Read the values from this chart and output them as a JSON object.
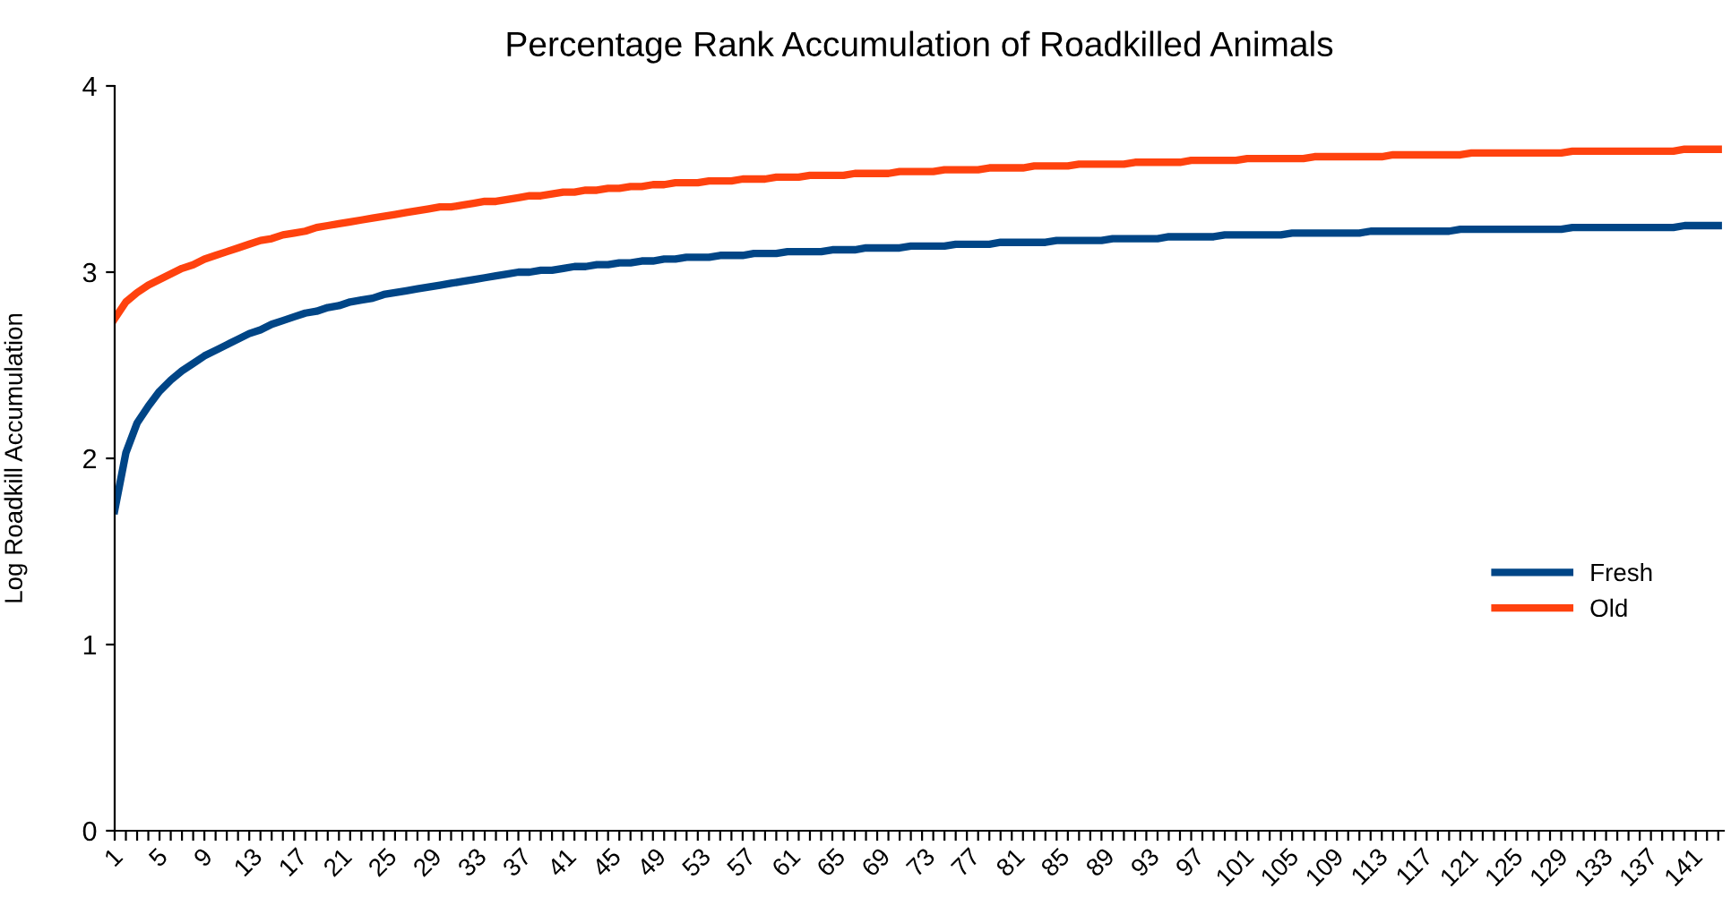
{
  "chart_data": {
    "type": "line",
    "title": "Percentage Rank Accumulation of Roadkilled Animals",
    "ylabel": "Log Roadkill Accumulation",
    "categories": [
      "1",
      null,
      null,
      null,
      "5",
      null,
      null,
      null,
      "9",
      null,
      null,
      null,
      "13",
      null,
      null,
      null,
      "17",
      null,
      null,
      null,
      "21",
      null,
      null,
      null,
      "25",
      null,
      null,
      null,
      "29",
      null,
      null,
      null,
      "33",
      null,
      null,
      null,
      "37",
      null,
      null,
      null,
      "41",
      null,
      null,
      null,
      "45",
      null,
      null,
      null,
      "49",
      null,
      null,
      null,
      "53",
      null,
      null,
      null,
      "57",
      null,
      null,
      null,
      "61",
      null,
      null,
      null,
      "65",
      null,
      null,
      null,
      "69",
      null,
      null,
      null,
      "73",
      null,
      null,
      null,
      "77",
      null,
      null,
      null,
      "81",
      null,
      null,
      null,
      "85",
      null,
      null,
      null,
      "89",
      null,
      null,
      null,
      "93",
      null,
      null,
      null,
      "97",
      null,
      null,
      null,
      "101",
      null,
      null,
      null,
      "105",
      null,
      null,
      null,
      "109",
      null,
      null,
      null,
      "113",
      null,
      null,
      null,
      "117",
      null,
      null,
      null,
      "121",
      null,
      null,
      null,
      "125",
      null,
      null,
      null,
      "129",
      null,
      null,
      null,
      "133",
      null,
      null,
      null,
      "137",
      null,
      null,
      null,
      "141",
      null,
      null,
      null
    ],
    "series": [
      {
        "name": "Fresh",
        "color": "#004586",
        "values": [
          1.72,
          2.03,
          2.19,
          2.28,
          2.36,
          2.42,
          2.47,
          2.51,
          2.55,
          2.58,
          2.61,
          2.64,
          2.67,
          2.69,
          2.72,
          2.74,
          2.76,
          2.78,
          2.79,
          2.81,
          2.82,
          2.84,
          2.85,
          2.86,
          2.88,
          2.89,
          2.9,
          2.91,
          2.92,
          2.93,
          2.94,
          2.95,
          2.96,
          2.97,
          2.98,
          2.99,
          3.0,
          3.0,
          3.01,
          3.01,
          3.02,
          3.03,
          3.03,
          3.04,
          3.04,
          3.05,
          3.05,
          3.06,
          3.06,
          3.07,
          3.07,
          3.08,
          3.08,
          3.08,
          3.09,
          3.09,
          3.09,
          3.1,
          3.1,
          3.1,
          3.11,
          3.11,
          3.11,
          3.11,
          3.12,
          3.12,
          3.12,
          3.13,
          3.13,
          3.13,
          3.13,
          3.14,
          3.14,
          3.14,
          3.14,
          3.15,
          3.15,
          3.15,
          3.15,
          3.16,
          3.16,
          3.16,
          3.16,
          3.16,
          3.17,
          3.17,
          3.17,
          3.17,
          3.17,
          3.18,
          3.18,
          3.18,
          3.18,
          3.18,
          3.19,
          3.19,
          3.19,
          3.19,
          3.19,
          3.2,
          3.2,
          3.2,
          3.2,
          3.2,
          3.2,
          3.21,
          3.21,
          3.21,
          3.21,
          3.21,
          3.21,
          3.21,
          3.22,
          3.22,
          3.22,
          3.22,
          3.22,
          3.22,
          3.22,
          3.22,
          3.23,
          3.23,
          3.23,
          3.23,
          3.23,
          3.23,
          3.23,
          3.23,
          3.23,
          3.23,
          3.24,
          3.24,
          3.24,
          3.24,
          3.24,
          3.24,
          3.24,
          3.24,
          3.24,
          3.24,
          3.25,
          3.25,
          3.25,
          3.25
        ]
      },
      {
        "name": "Old",
        "color": "#ff420e",
        "values": [
          2.75,
          2.84,
          2.89,
          2.93,
          2.96,
          2.99,
          3.02,
          3.04,
          3.07,
          3.09,
          3.11,
          3.13,
          3.15,
          3.17,
          3.18,
          3.2,
          3.21,
          3.22,
          3.24,
          3.25,
          3.26,
          3.27,
          3.28,
          3.29,
          3.3,
          3.31,
          3.32,
          3.33,
          3.34,
          3.35,
          3.35,
          3.36,
          3.37,
          3.38,
          3.38,
          3.39,
          3.4,
          3.41,
          3.41,
          3.42,
          3.43,
          3.43,
          3.44,
          3.44,
          3.45,
          3.45,
          3.46,
          3.46,
          3.47,
          3.47,
          3.48,
          3.48,
          3.48,
          3.49,
          3.49,
          3.49,
          3.5,
          3.5,
          3.5,
          3.51,
          3.51,
          3.51,
          3.52,
          3.52,
          3.52,
          3.52,
          3.53,
          3.53,
          3.53,
          3.53,
          3.54,
          3.54,
          3.54,
          3.54,
          3.55,
          3.55,
          3.55,
          3.55,
          3.56,
          3.56,
          3.56,
          3.56,
          3.57,
          3.57,
          3.57,
          3.57,
          3.58,
          3.58,
          3.58,
          3.58,
          3.58,
          3.59,
          3.59,
          3.59,
          3.59,
          3.59,
          3.6,
          3.6,
          3.6,
          3.6,
          3.6,
          3.61,
          3.61,
          3.61,
          3.61,
          3.61,
          3.61,
          3.62,
          3.62,
          3.62,
          3.62,
          3.62,
          3.62,
          3.62,
          3.63,
          3.63,
          3.63,
          3.63,
          3.63,
          3.63,
          3.63,
          3.64,
          3.64,
          3.64,
          3.64,
          3.64,
          3.64,
          3.64,
          3.64,
          3.64,
          3.65,
          3.65,
          3.65,
          3.65,
          3.65,
          3.65,
          3.65,
          3.65,
          3.65,
          3.65,
          3.66,
          3.66,
          3.66,
          3.66
        ]
      }
    ],
    "ylim": [
      0,
      4
    ],
    "yticks": [
      0,
      1,
      2,
      3,
      4
    ],
    "grid": false,
    "legend": "right",
    "marker": "none",
    "line_style": "solid"
  }
}
